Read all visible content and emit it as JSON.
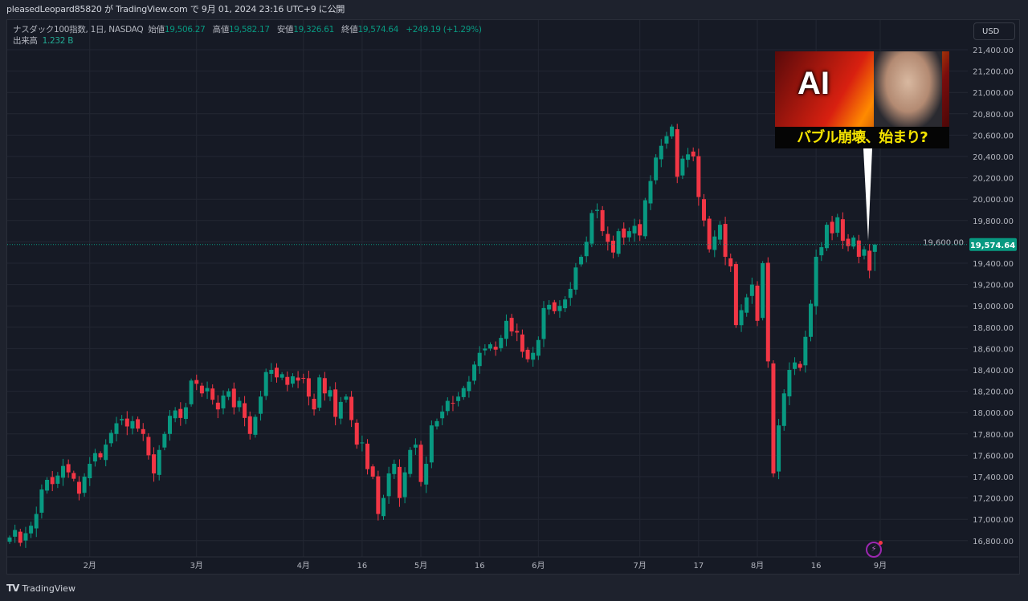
{
  "header": {
    "published": "pleasedLeopard85820 が TradingView.com で 9月 01, 2024 23:16 UTC+9 に公開"
  },
  "legend": {
    "symbol": "ナスダック100指数, 1日, NASDAQ",
    "open_label": "始値",
    "open": "19,506.27",
    "high_label": "高値",
    "high": "19,582.17",
    "low_label": "安値",
    "low": "19,326.61",
    "close_label": "終値",
    "close": "19,574.64",
    "change": "+249.19 (+1.29%)",
    "volume_label": "出来高",
    "volume": "1.232 B"
  },
  "currency_button": "USD",
  "thumbnail": {
    "title": "AI",
    "caption": "バブル崩壊、始まり?"
  },
  "footer": {
    "brand": "TradingView"
  },
  "icons": {
    "alert": "lightning-icon",
    "logo": "tradingview-logo"
  },
  "colors": {
    "up": "#089981",
    "down": "#f23645",
    "background": "#161a25",
    "last_price": "#089981"
  },
  "chart_data": {
    "type": "candlestick",
    "title": "ナスダック100指数, 1日, NASDAQ",
    "last_price": 19574.64,
    "last_price_label": "19,574.64",
    "last_bar": {
      "open": 19506.27,
      "high": 19582.17,
      "low": 19326.61,
      "close": 19574.64
    },
    "ylim": [
      16700,
      21500
    ],
    "y_ticks": [
      "21,400.00",
      "21,200.00",
      "21,000.00",
      "20,800.00",
      "20,600.00",
      "20,400.00",
      "20,200.00",
      "20,000.00",
      "19,800.00",
      "19,600.00",
      "19,400.00",
      "19,200.00",
      "19,000.00",
      "18,800.00",
      "18,600.00",
      "18,400.00",
      "18,200.00",
      "18,000.00",
      "17,800.00",
      "17,600.00",
      "17,400.00",
      "17,200.00",
      "17,000.00",
      "16,800.00"
    ],
    "x_ticks": [
      "2月",
      "3月",
      "4月",
      "16",
      "5月",
      "16",
      "6月",
      "7月",
      "17",
      "8月",
      "16",
      "9月"
    ],
    "grid": true,
    "close": [
      16830,
      16900,
      16780,
      16870,
      16940,
      17050,
      17280,
      17370,
      17330,
      17410,
      17500,
      17440,
      17380,
      17240,
      17400,
      17520,
      17620,
      17580,
      17700,
      17810,
      17900,
      17940,
      17870,
      17920,
      17850,
      17800,
      17600,
      17430,
      17650,
      17800,
      17970,
      18020,
      17950,
      18050,
      18300,
      18270,
      18180,
      18230,
      18120,
      18030,
      18160,
      18200,
      18050,
      18110,
      17950,
      17800,
      17960,
      18150,
      18380,
      18400,
      18330,
      18360,
      18260,
      18340,
      18300,
      18320,
      18150,
      18030,
      18330,
      18180,
      18210,
      17960,
      18100,
      18150,
      17930,
      17700,
      17720,
      17470,
      17400,
      17050,
      17200,
      17430,
      17520,
      17200,
      17440,
      17650,
      17700,
      17350,
      17520,
      17880,
      17920,
      18010,
      18110,
      18090,
      18150,
      18230,
      18290,
      18450,
      18560,
      18600,
      18640,
      18590,
      18700,
      18860,
      18760,
      18750,
      18570,
      18500,
      18560,
      18680,
      18980,
      19010,
      18950,
      19000,
      19060,
      19160,
      19360,
      19460,
      19600,
      19870,
      19900,
      19700,
      19600,
      19500,
      19700,
      19640,
      19700,
      19750,
      19660,
      19990,
      20170,
      20390,
      20500,
      20590,
      20680,
      20210,
      20380,
      20420,
      20400,
      20020,
      19800,
      19530,
      19650,
      19760,
      19460,
      19370,
      18820,
      18960,
      19080,
      19200,
      18860,
      19400,
      18480,
      17430,
      17880,
      18180,
      18400,
      18470,
      18420,
      18710,
      19020,
      19460,
      19550,
      19760,
      19680,
      19830,
      19610,
      19560,
      19640,
      19460,
      19530,
      19330,
      19574.64
    ]
  }
}
